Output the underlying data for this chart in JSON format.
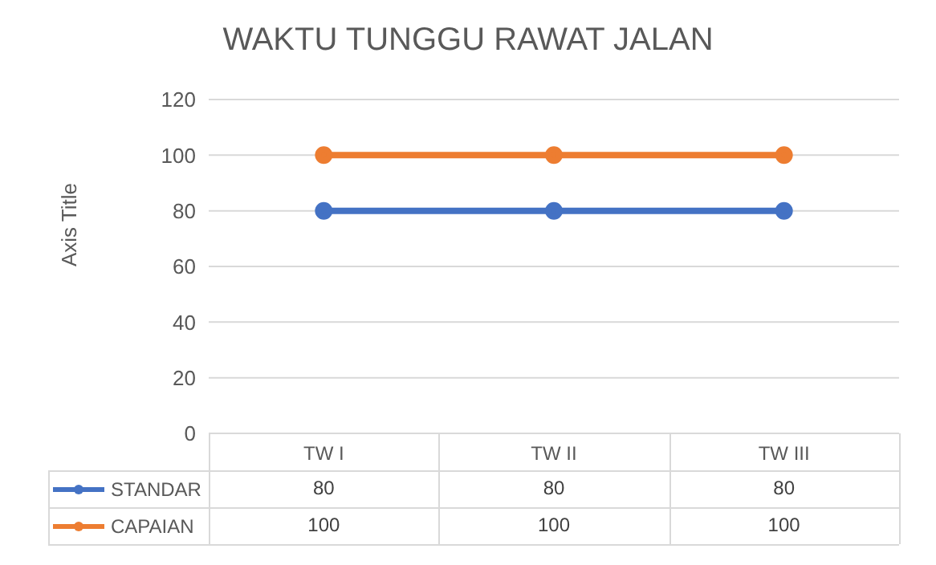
{
  "chart_data": {
    "type": "line",
    "title": "WAKTU TUNGGU RAWAT JALAN",
    "ylabel": "Axis Title",
    "categories": [
      "TW I",
      "TW II",
      "TW III"
    ],
    "series": [
      {
        "name": "STANDAR",
        "color": "#4472c4",
        "values": [
          80,
          80,
          80
        ]
      },
      {
        "name": "CAPAIAN",
        "color": "#ed7d31",
        "values": [
          100,
          100,
          100
        ]
      }
    ],
    "ylim": [
      0,
      120
    ],
    "yticks": [
      0,
      20,
      40,
      60,
      80,
      100,
      120
    ],
    "grid": "y",
    "legend": "bottom",
    "marker": "circle",
    "line_style": "solid",
    "data_labels": true
  }
}
